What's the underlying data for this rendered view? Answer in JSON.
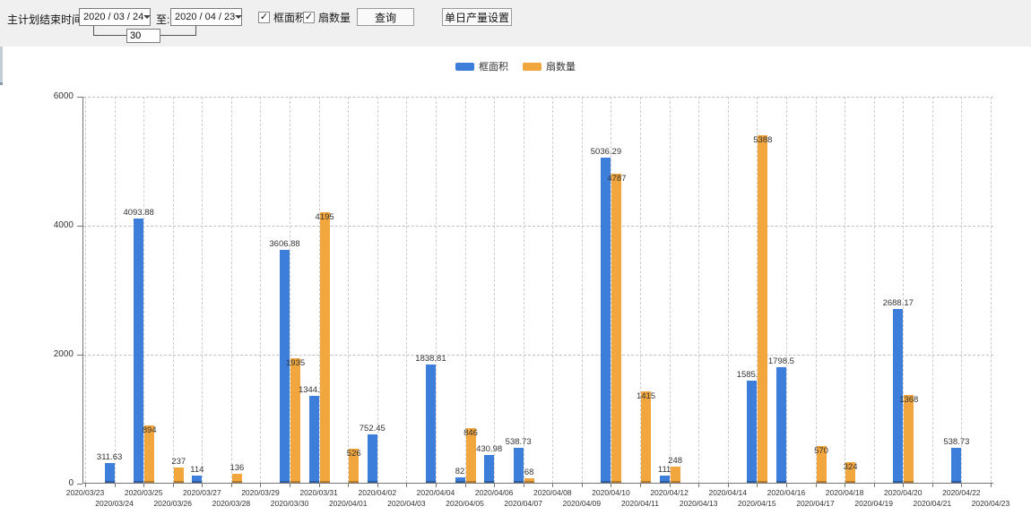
{
  "toolbar": {
    "end_time_label": "主计划结束时间:",
    "start_date": "2020 / 03 / 24",
    "to_label": "至:",
    "end_date": "2020 / 04 / 23",
    "interval_days": "30",
    "frame_area_checkbox_label": "框面积",
    "fan_count_checkbox_label": "扇数量",
    "check_glyph": "✓",
    "query_button_label": "查询",
    "daily_output_button_label": "单日产量设置"
  },
  "legend": {
    "items": [
      {
        "label": "框面积",
        "color": "#3d7edb"
      },
      {
        "label": "扇数量",
        "color": "#f2a63e"
      }
    ]
  },
  "colors": {
    "frame_area": "#3d7edb",
    "fan_count": "#f2a63e",
    "axis": "#777777",
    "gridline": "#cccccc"
  },
  "chart_data": {
    "type": "bar",
    "title": "",
    "xlabel": "",
    "ylabel": "",
    "ylim": [
      0,
      6000
    ],
    "yticks": [
      0,
      2000,
      4000,
      6000
    ],
    "grid": true,
    "legend_position": "top",
    "categories": [
      "2020/03/23",
      "2020/03/24",
      "2020/03/25",
      "2020/03/26",
      "2020/03/27",
      "2020/03/28",
      "2020/03/29",
      "2020/03/30",
      "2020/03/31",
      "2020/04/01",
      "2020/04/02",
      "2020/04/03",
      "2020/04/04",
      "2020/04/05",
      "2020/04/06",
      "2020/04/07",
      "2020/04/08",
      "2020/04/09",
      "2020/04/10",
      "2020/04/11",
      "2020/04/12",
      "2020/04/13",
      "2020/04/14",
      "2020/04/15",
      "2020/04/16",
      "2020/04/17",
      "2020/04/18",
      "2020/04/19",
      "2020/04/20",
      "2020/04/21",
      "2020/04/22",
      "2020/04/23"
    ],
    "series": [
      {
        "name": "框面积",
        "color": "#3d7edb",
        "values": [
          null,
          311.63,
          4093.88,
          null,
          114,
          null,
          null,
          3606.88,
          1344.95,
          null,
          752.45,
          null,
          1838.81,
          82,
          430.98,
          538.73,
          null,
          null,
          5036.29,
          null,
          111,
          null,
          null,
          1585.96,
          1798.5,
          null,
          null,
          null,
          2688.17,
          null,
          538.73,
          null
        ]
      },
      {
        "name": "扇数量",
        "color": "#f2a63e",
        "values": [
          null,
          null,
          894,
          237,
          null,
          136,
          null,
          1935,
          4195,
          526,
          null,
          null,
          null,
          846,
          null,
          68,
          null,
          null,
          4787,
          1415,
          248,
          null,
          null,
          5388,
          null,
          570,
          324,
          null,
          1368,
          null,
          null,
          null
        ]
      }
    ]
  }
}
